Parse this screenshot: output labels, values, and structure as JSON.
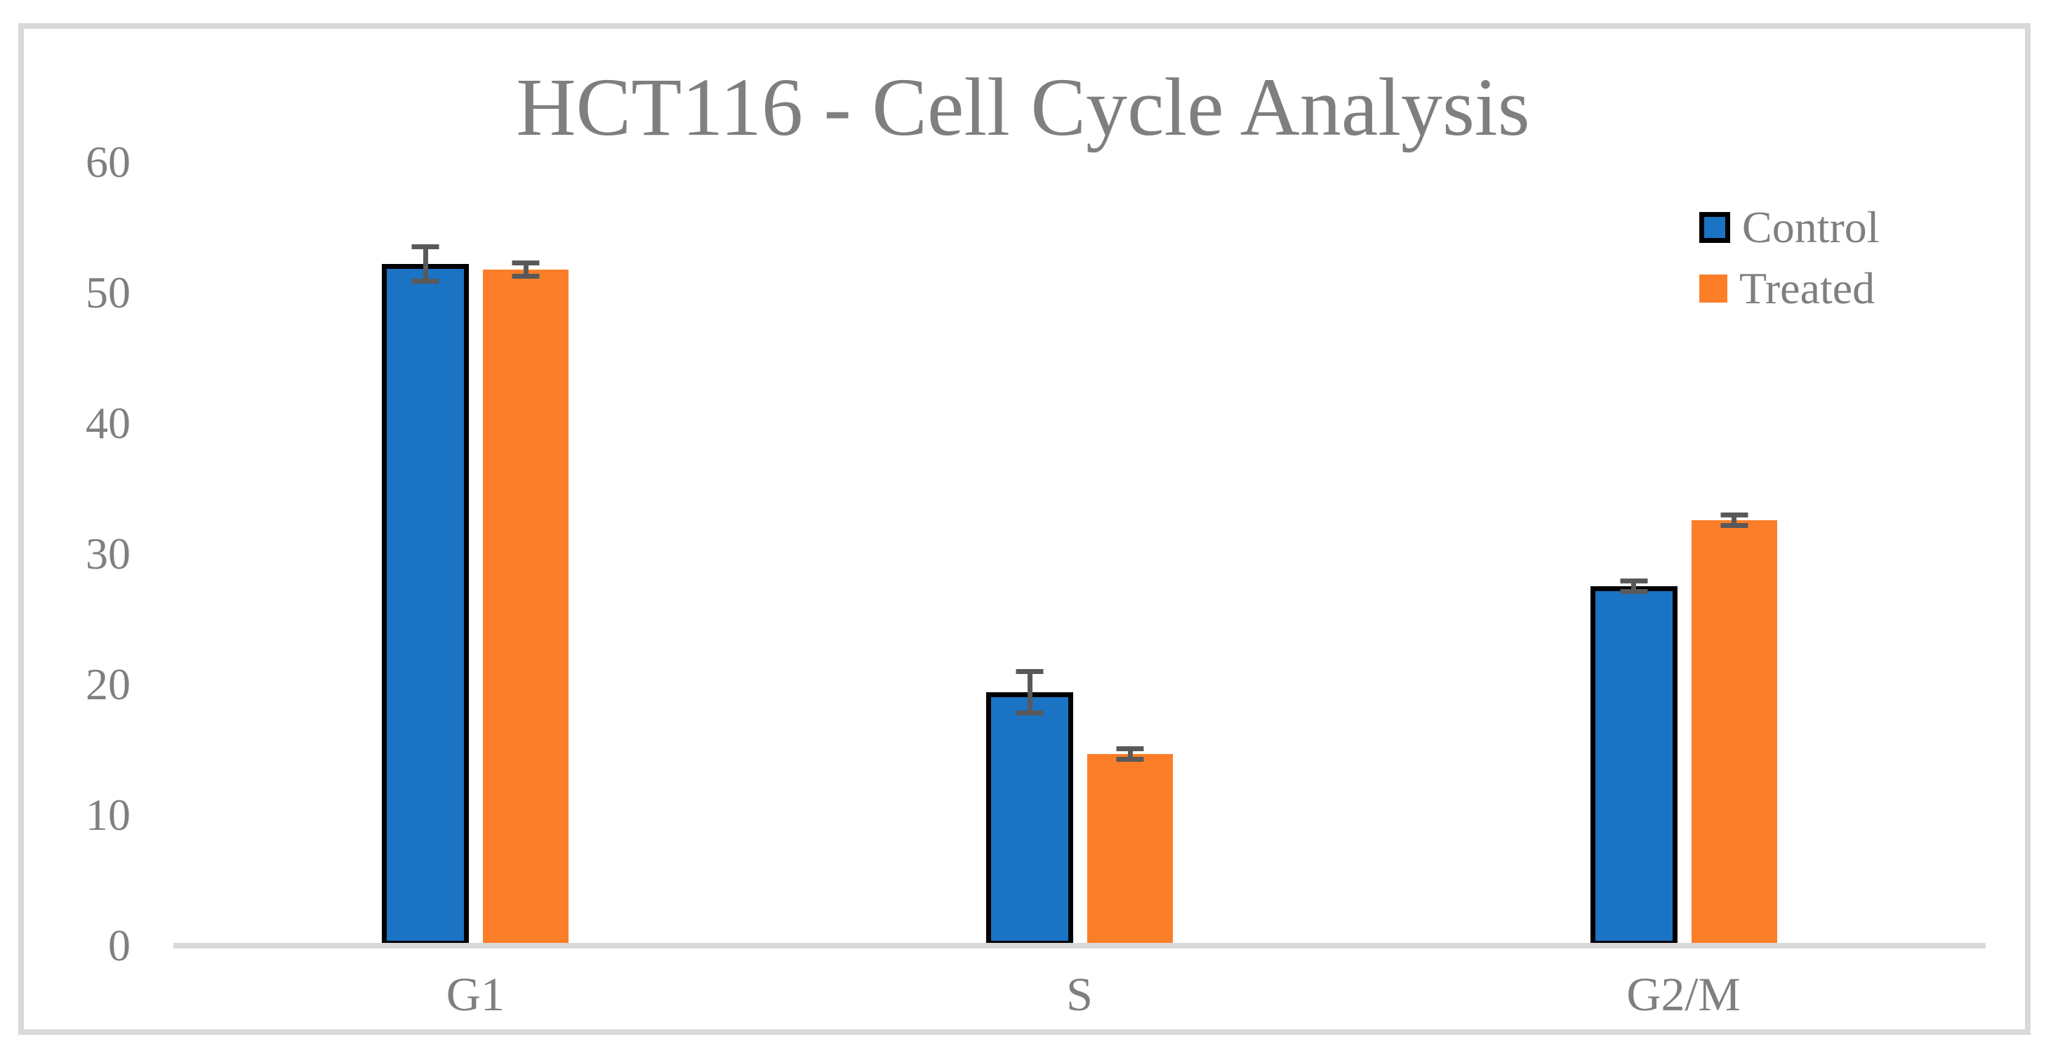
{
  "chart_data": {
    "type": "bar",
    "title": "HCT116 - Cell Cycle Analysis",
    "categories": [
      "G1",
      "S",
      "G2/M"
    ],
    "series": [
      {
        "name": "Control",
        "color": "#1B73C4",
        "border_color": "#000000",
        "values": [
          52.2,
          19.4,
          27.5
        ],
        "errors": [
          1.3,
          1.6,
          0.4
        ]
      },
      {
        "name": "Treated",
        "color": "#FD7E28",
        "border_color": "",
        "values": [
          51.8,
          14.7,
          32.6
        ],
        "errors": [
          0.5,
          0.4,
          0.4
        ]
      }
    ],
    "xlabel": "",
    "ylabel": "",
    "ylim": [
      0,
      60
    ],
    "yticks": [
      0,
      10,
      20,
      30,
      40,
      50,
      60
    ],
    "grid": false,
    "legend_position": "top-right",
    "error_bar_color": "#595959",
    "axis_color": "#D9D9D9",
    "frame_color": "#D9D9D9",
    "text_color": "#7F7F7F"
  }
}
